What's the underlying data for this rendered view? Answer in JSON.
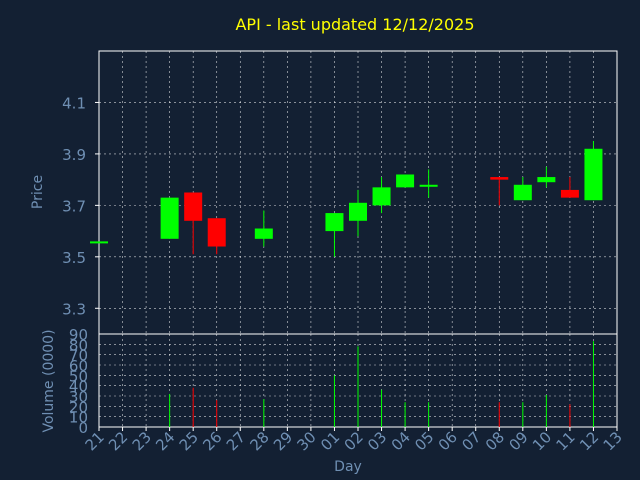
{
  "colors": {
    "background": "#132033",
    "title": "#ffff00",
    "axis_text": "#6f8fb3",
    "frame": "#ffffff",
    "grid": "#ffffff",
    "up": "#00ff00",
    "down": "#ff0000"
  },
  "chart_data": [
    {
      "type": "candlestick",
      "title": "API - last updated 12/12/2025",
      "ylabel": "Price",
      "ylim": [
        3.2,
        4.3
      ],
      "yticks": [
        "3.3",
        "3.5",
        "3.7",
        "3.9",
        "4.1"
      ],
      "ytick_values": [
        3.3,
        3.5,
        3.7,
        3.9,
        4.1
      ],
      "grid": true,
      "x_categories": [
        "21",
        "22",
        "23",
        "24",
        "25",
        "26",
        "27",
        "28",
        "29",
        "30",
        "01",
        "02",
        "03",
        "04",
        "05",
        "06",
        "07",
        "08",
        "09",
        "10",
        "11",
        "12",
        "13"
      ],
      "candles": [
        {
          "day": "21",
          "open": 3.56,
          "high": 3.56,
          "low": 3.56,
          "close": 3.56
        },
        {
          "day": "24",
          "open": 3.57,
          "high": 3.73,
          "low": 3.57,
          "close": 3.73
        },
        {
          "day": "25",
          "open": 3.75,
          "high": 3.75,
          "low": 3.51,
          "close": 3.64
        },
        {
          "day": "26",
          "open": 3.65,
          "high": 3.65,
          "low": 3.51,
          "close": 3.54
        },
        {
          "day": "28",
          "open": 3.57,
          "high": 3.68,
          "low": 3.54,
          "close": 3.61
        },
        {
          "day": "01",
          "open": 3.6,
          "high": 3.67,
          "low": 3.5,
          "close": 3.67
        },
        {
          "day": "02",
          "open": 3.64,
          "high": 3.76,
          "low": 3.58,
          "close": 3.71
        },
        {
          "day": "03",
          "open": 3.7,
          "high": 3.81,
          "low": 3.67,
          "close": 3.77
        },
        {
          "day": "04",
          "open": 3.77,
          "high": 3.82,
          "low": 3.77,
          "close": 3.82
        },
        {
          "day": "05",
          "open": 3.78,
          "high": 3.84,
          "low": 3.73,
          "close": 3.78
        },
        {
          "day": "08",
          "open": 3.81,
          "high": 3.81,
          "low": 3.7,
          "close": 3.8
        },
        {
          "day": "09",
          "open": 3.72,
          "high": 3.81,
          "low": 3.72,
          "close": 3.78
        },
        {
          "day": "10",
          "open": 3.79,
          "high": 3.85,
          "low": 3.77,
          "close": 3.81
        },
        {
          "day": "11",
          "open": 3.76,
          "high": 3.81,
          "low": 3.73,
          "close": 3.73
        },
        {
          "day": "12",
          "open": 3.72,
          "high": 3.95,
          "low": 3.72,
          "close": 3.92
        }
      ]
    },
    {
      "type": "bar",
      "ylabel": "Volume (0000)",
      "xlabel": "Day",
      "ylim": [
        0,
        90
      ],
      "yticks": [
        "0",
        "10",
        "20",
        "30",
        "40",
        "50",
        "60",
        "70",
        "80",
        "90"
      ],
      "ytick_values": [
        0,
        10,
        20,
        30,
        40,
        50,
        60,
        70,
        80,
        90
      ],
      "grid": true,
      "categories": [
        "24",
        "25",
        "26",
        "28",
        "01",
        "02",
        "03",
        "04",
        "05",
        "08",
        "09",
        "10",
        "11",
        "12"
      ],
      "values": [
        32,
        38,
        26,
        27,
        50,
        78,
        36,
        24,
        24,
        24,
        24,
        31,
        22,
        83
      ],
      "directions": [
        "up",
        "down",
        "down",
        "up",
        "up",
        "up",
        "up",
        "up",
        "up",
        "down",
        "up",
        "up",
        "down",
        "up"
      ]
    }
  ]
}
